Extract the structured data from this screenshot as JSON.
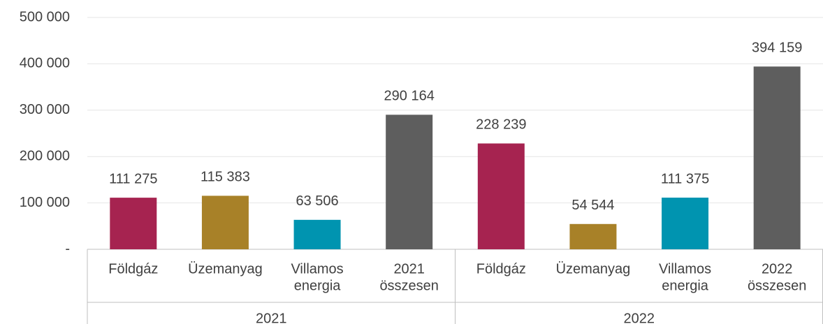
{
  "chart_data": {
    "type": "bar",
    "groups": [
      "2021",
      "2022"
    ],
    "categories": [
      [
        "Földgáz"
      ],
      [
        "Üzemanyag"
      ],
      [
        "Villamos",
        "energia"
      ],
      [
        "2021",
        "összesen"
      ],
      [
        "Földgáz"
      ],
      [
        "Üzemanyag"
      ],
      [
        "Villamos",
        "energia"
      ],
      [
        "2022",
        "összesen"
      ]
    ],
    "values": [
      111275,
      115383,
      63506,
      290164,
      228239,
      54544,
      111375,
      394159
    ],
    "value_labels": [
      "111 275",
      "115 383",
      "63 506",
      "290 164",
      "228 239",
      "54 544",
      "111 375",
      "394 159"
    ],
    "colors": [
      "#a62350",
      "#a88128",
      "#0094b0",
      "#5e5e5e",
      "#a62350",
      "#a88128",
      "#0094b0",
      "#5e5e5e"
    ],
    "ylim": [
      0,
      500000
    ],
    "yticks": [
      {
        "value": 0,
        "label": "-"
      },
      {
        "value": 100000,
        "label": "100 000"
      },
      {
        "value": 200000,
        "label": "200 000"
      },
      {
        "value": 300000,
        "label": "300 000"
      },
      {
        "value": 400000,
        "label": "400 000"
      },
      {
        "value": 500000,
        "label": "500 000"
      }
    ],
    "grid": true
  }
}
